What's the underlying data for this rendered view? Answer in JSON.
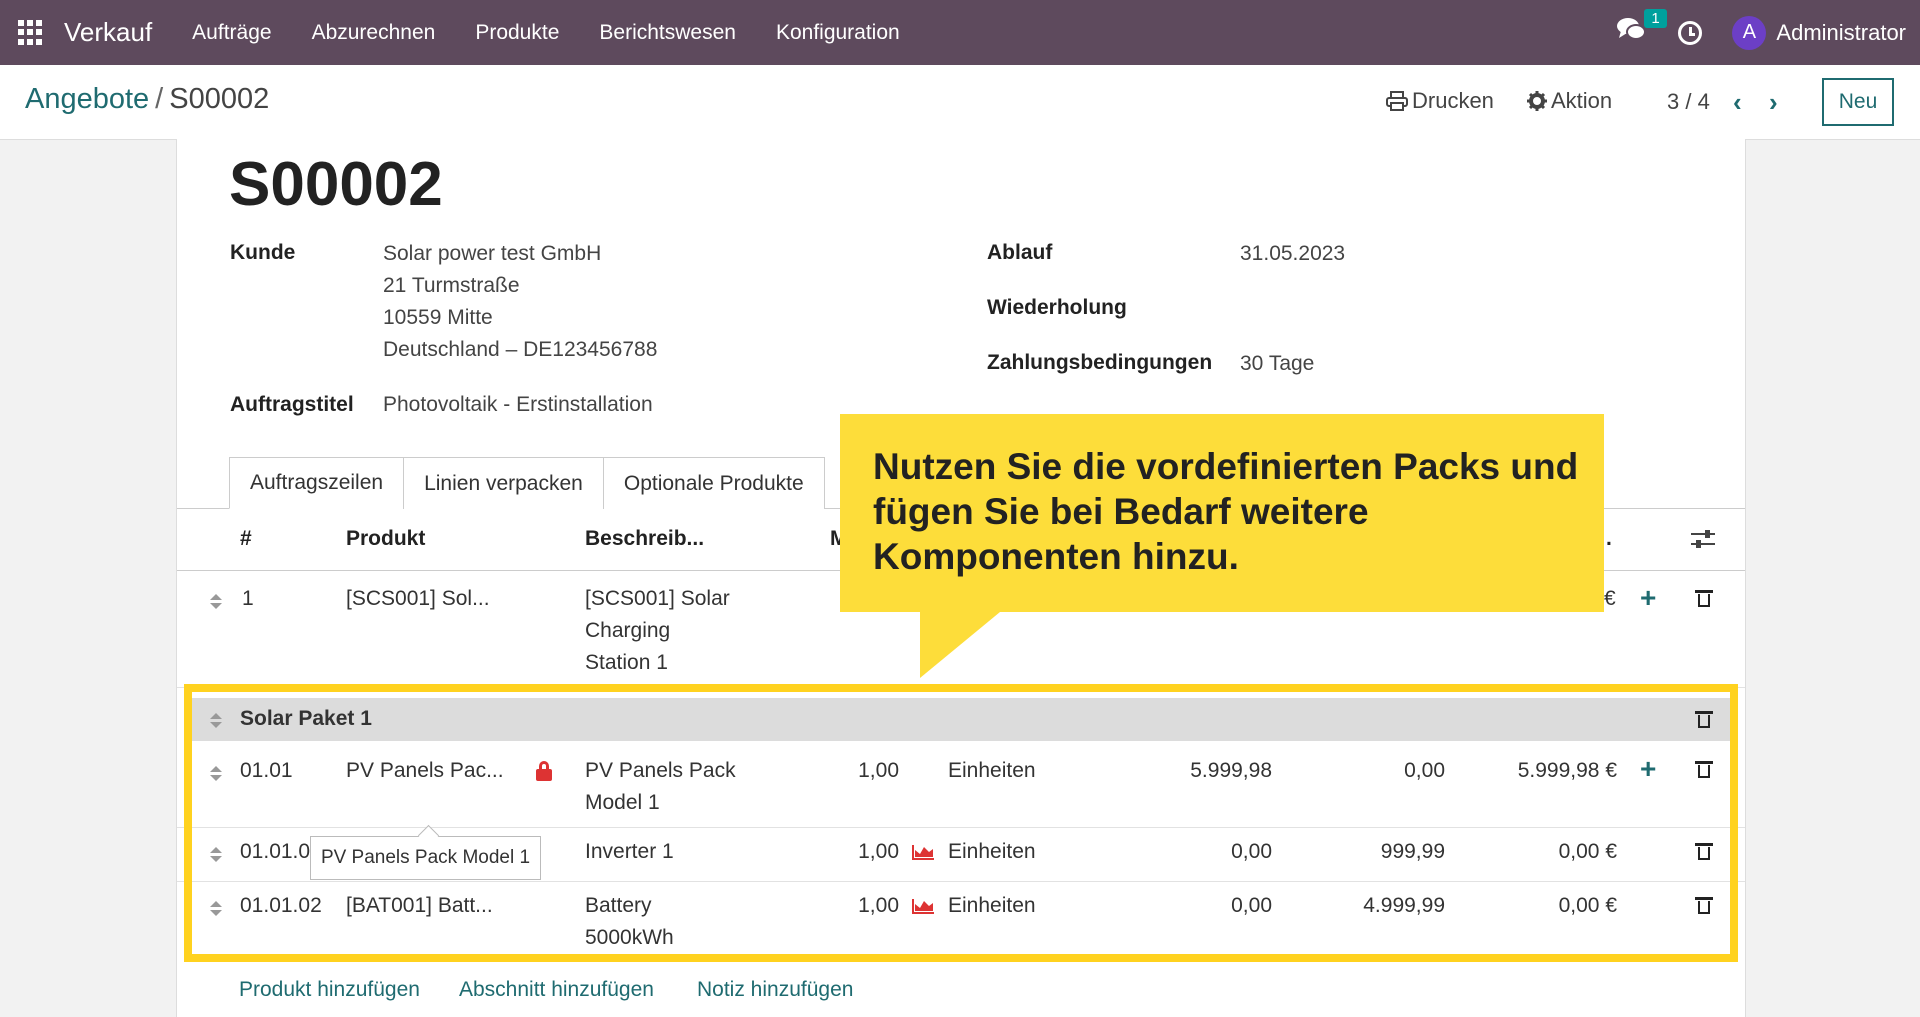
{
  "navbar": {
    "app_name": "Verkauf",
    "menu": [
      "Aufträge",
      "Abzurechnen",
      "Produkte",
      "Berichtswesen",
      "Konfiguration"
    ],
    "chat_badge": "1",
    "avatar_initial": "A",
    "user_name": "Administrator"
  },
  "control": {
    "breadcrumb_parent": "Angebote",
    "breadcrumb_sep": "/",
    "breadcrumb_current": "S00002",
    "print_label": "Drucken",
    "action_label": "Aktion",
    "pager": "3 / 4",
    "prev": "‹",
    "next": "›",
    "new_label": "Neu"
  },
  "form": {
    "title": "S00002",
    "customer_label": "Kunde",
    "customer_lines": [
      "Solar power test GmbH",
      "21 Turmstraße",
      "10559 Mitte",
      "Deutschland – DE123456788"
    ],
    "order_title_label": "Auftragstitel",
    "order_title_value": "Photovoltaik - Erstinstallation",
    "expiry_label": "Ablauf",
    "expiry_value": "31.05.2023",
    "recurrence_label": "Wiederholung",
    "payment_label": "Zahlungsbedingungen",
    "payment_value": "30 Tage"
  },
  "tabs": [
    "Auftragszeilen",
    "Linien verpacken",
    "Optionale Produkte"
  ],
  "table": {
    "headers": {
      "num": "#",
      "product": "Produkt",
      "description": "Beschreib...",
      "qty": "M",
      "subtotal": "."
    },
    "row1": {
      "num": "1",
      "product": "[SCS001] Sol...",
      "desc": [
        "[SCS001] Solar",
        "Charging",
        "Station 1"
      ],
      "subtotal": "€"
    },
    "section": {
      "label": "Solar Paket 1"
    },
    "row2": {
      "num": "01.01",
      "product": "PV Panels Pac...",
      "desc": [
        "PV Panels Pack",
        "Model 1"
      ],
      "qty": "1,00",
      "uom": "Einheiten",
      "price": "5.999,98",
      "discount": "0,00",
      "subtotal": "5.999,98 €"
    },
    "row3": {
      "num": "01.01.0",
      "desc": "Inverter 1",
      "qty": "1,00",
      "uom": "Einheiten",
      "price": "0,00",
      "discount": "999,99",
      "subtotal": "0,00 €"
    },
    "row4": {
      "num": "01.01.02",
      "product": "[BAT001] Batt...",
      "desc": [
        "Battery",
        "5000kWh"
      ],
      "qty": "1,00",
      "uom": "Einheiten",
      "price": "0,00",
      "discount": "4.999,99",
      "subtotal": "0,00 €"
    },
    "tooltip": "PV Panels Pack Model 1"
  },
  "add_links": {
    "product": "Produkt hinzufügen",
    "section": "Abschnitt hinzufügen",
    "note": "Notiz hinzufügen"
  },
  "callout": {
    "text": "Nutzen Sie die vordefinierten Packs und fügen Sie bei Bedarf weitere Komponenten hinzu."
  },
  "colors": {
    "navbar": "#5e4a5d",
    "accent": "#1f6b70",
    "highlight": "#ffd21f",
    "callout": "#fddd3a",
    "alert": "#dd3333"
  }
}
